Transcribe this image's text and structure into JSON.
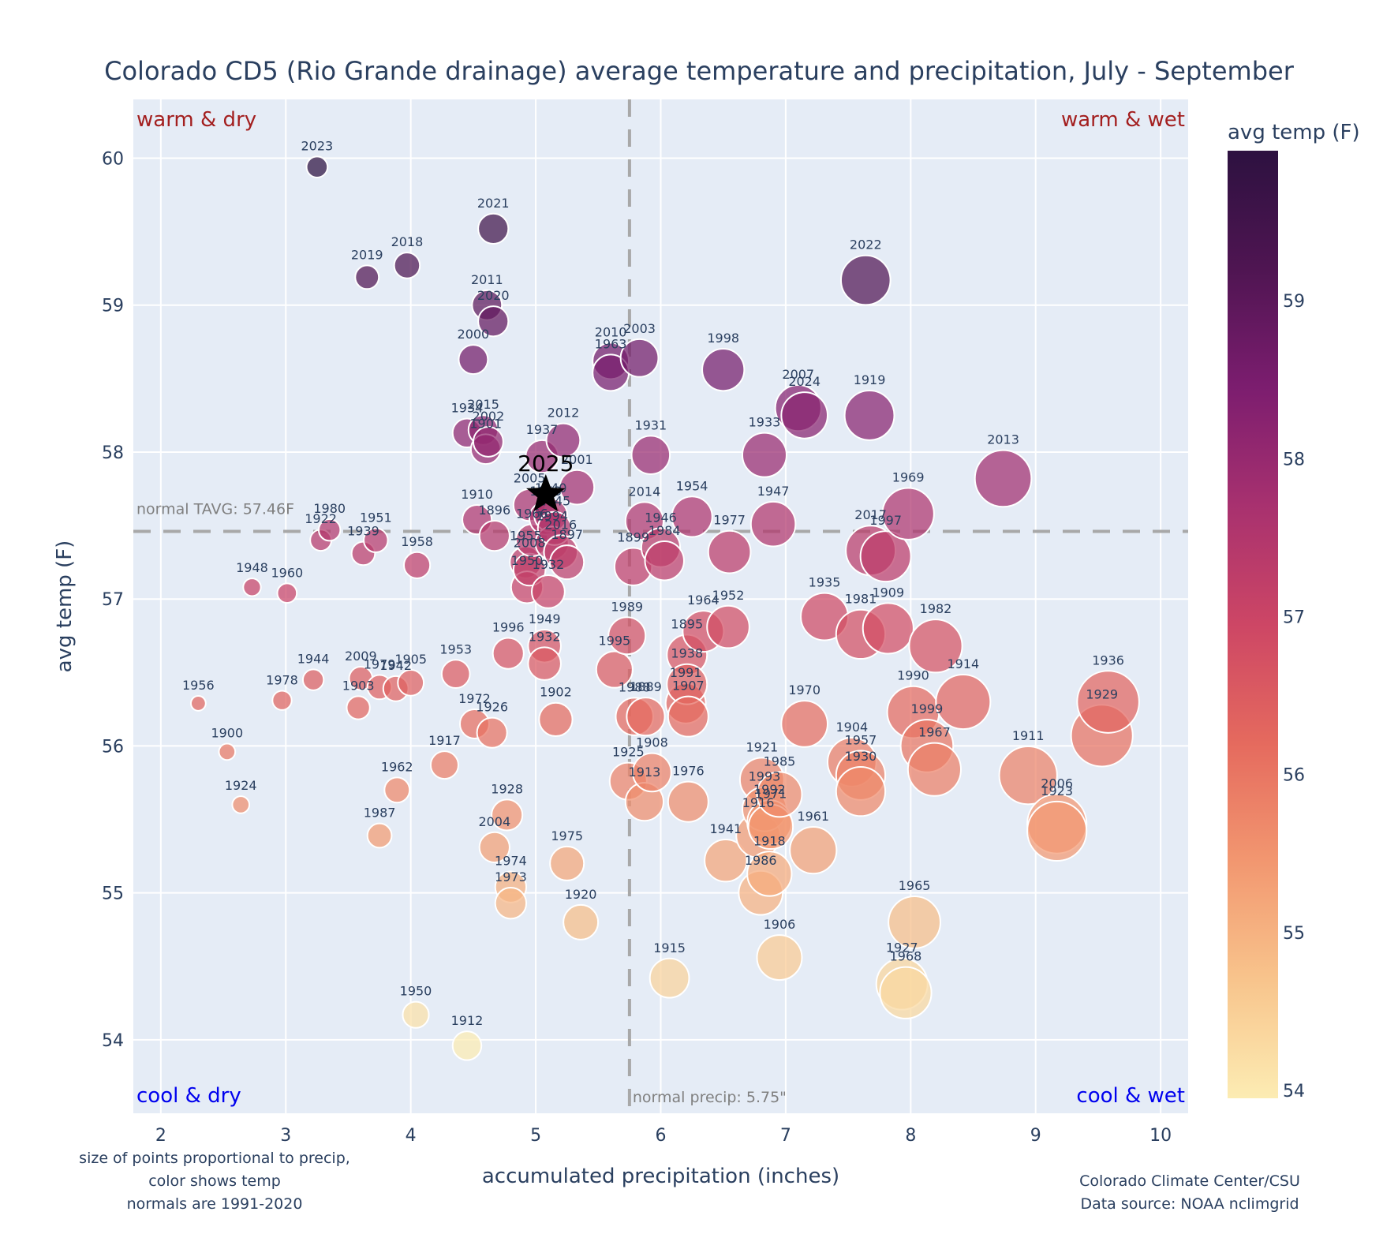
{
  "chart_data": {
    "type": "scatter",
    "title": "Colorado CD5 (Rio Grande drainage) average temperature and precipitation, July - September",
    "xlabel": "accumulated precipitation (inches)",
    "ylabel": "avg temp (F)",
    "xlim": [
      1.78,
      10.22
    ],
    "ylim": [
      53.5,
      60.4
    ],
    "xticks": [
      2,
      3,
      4,
      5,
      6,
      7,
      8,
      9,
      10
    ],
    "yticks": [
      54,
      55,
      56,
      57,
      58,
      59,
      60
    ],
    "grid": true,
    "size_encodes": "precip",
    "color_encodes": "avg temp (F)",
    "colorbar": {
      "title": "avg temp (F)",
      "range": [
        53.95,
        59.95
      ],
      "ticks": [
        54,
        55,
        56,
        57,
        58,
        59
      ],
      "colorscale": [
        "#fcecb3",
        "#f8c48c",
        "#f29770",
        "#e56a5e",
        "#cd4665",
        "#a8316f",
        "#7c1d6f",
        "#4f1552",
        "#2d1140"
      ]
    },
    "normals": {
      "temp": 57.46,
      "precip": 5.75,
      "temp_label": "normal TAVG: 57.46F",
      "precip_label": "normal precip: 5.75\""
    },
    "quadrant_labels": {
      "top_left": "warm & dry",
      "top_right": "warm & wet",
      "bottom_left": "cool & dry",
      "bottom_right": "cool & wet"
    },
    "highlight": {
      "year": "2025",
      "precip": 5.08,
      "temp": 57.71,
      "marker": "star"
    },
    "points": [
      {
        "year": "2023",
        "precip": 3.25,
        "temp": 59.94
      },
      {
        "year": "2021",
        "precip": 4.66,
        "temp": 59.52
      },
      {
        "year": "2019",
        "precip": 3.65,
        "temp": 59.19
      },
      {
        "year": "2018",
        "precip": 3.97,
        "temp": 59.27
      },
      {
        "year": "2011",
        "precip": 4.61,
        "temp": 59.0
      },
      {
        "year": "2020",
        "precip": 4.66,
        "temp": 58.89
      },
      {
        "year": "2000",
        "precip": 4.5,
        "temp": 58.63
      },
      {
        "year": "2010",
        "precip": 5.6,
        "temp": 58.62
      },
      {
        "year": "1963",
        "precip": 5.6,
        "temp": 58.54
      },
      {
        "year": "2003",
        "precip": 5.83,
        "temp": 58.64
      },
      {
        "year": "1998",
        "precip": 6.5,
        "temp": 58.56
      },
      {
        "year": "2007",
        "precip": 7.1,
        "temp": 58.3
      },
      {
        "year": "2024",
        "precip": 7.15,
        "temp": 58.25
      },
      {
        "year": "1919",
        "precip": 7.67,
        "temp": 58.25
      },
      {
        "year": "2022",
        "precip": 7.64,
        "temp": 59.17
      },
      {
        "year": "1934",
        "precip": 4.45,
        "temp": 58.13
      },
      {
        "year": "2015",
        "precip": 4.58,
        "temp": 58.15
      },
      {
        "year": "2002",
        "precip": 4.62,
        "temp": 58.07
      },
      {
        "year": "1901",
        "precip": 4.6,
        "temp": 58.02
      },
      {
        "year": "2012",
        "precip": 5.22,
        "temp": 58.08
      },
      {
        "year": "1937",
        "precip": 5.05,
        "temp": 57.97
      },
      {
        "year": "1931",
        "precip": 5.92,
        "temp": 57.98
      },
      {
        "year": "1933",
        "precip": 6.83,
        "temp": 57.98
      },
      {
        "year": "2013",
        "precip": 8.74,
        "temp": 57.82
      },
      {
        "year": "2001",
        "precip": 5.33,
        "temp": 57.76
      },
      {
        "year": "2005",
        "precip": 4.95,
        "temp": 57.64
      },
      {
        "year": "1910",
        "precip": 4.53,
        "temp": 57.54
      },
      {
        "year": "1896",
        "precip": 4.67,
        "temp": 57.43
      },
      {
        "year": "1940",
        "precip": 5.12,
        "temp": 57.57
      },
      {
        "year": "1943",
        "precip": 5.08,
        "temp": 57.55
      },
      {
        "year": "1945",
        "precip": 5.15,
        "temp": 57.48
      },
      {
        "year": "1966",
        "precip": 4.97,
        "temp": 57.4
      },
      {
        "year": "1994",
        "precip": 5.13,
        "temp": 57.38
      },
      {
        "year": "2016",
        "precip": 5.2,
        "temp": 57.32
      },
      {
        "year": "1955",
        "precip": 4.92,
        "temp": 57.25
      },
      {
        "year": "2008",
        "precip": 4.95,
        "temp": 57.2
      },
      {
        "year": "1897",
        "precip": 5.25,
        "temp": 57.25
      },
      {
        "year": "1932",
        "precip": 5.1,
        "temp": 57.05
      },
      {
        "year": "1950b",
        "precip": 4.93,
        "temp": 57.08
      },
      {
        "year": "2014",
        "precip": 5.87,
        "temp": 57.53
      },
      {
        "year": "1954",
        "precip": 6.25,
        "temp": 57.56
      },
      {
        "year": "1946",
        "precip": 6.0,
        "temp": 57.35
      },
      {
        "year": "1984",
        "precip": 6.03,
        "temp": 57.26
      },
      {
        "year": "1899",
        "precip": 5.78,
        "temp": 57.22
      },
      {
        "year": "1977",
        "precip": 6.55,
        "temp": 57.32
      },
      {
        "year": "1947",
        "precip": 6.9,
        "temp": 57.51
      },
      {
        "year": "2017",
        "precip": 7.68,
        "temp": 57.33
      },
      {
        "year": "1997",
        "precip": 7.8,
        "temp": 57.29
      },
      {
        "year": "1969",
        "precip": 7.98,
        "temp": 57.58
      },
      {
        "year": "1980",
        "precip": 3.35,
        "temp": 57.47
      },
      {
        "year": "1922",
        "precip": 3.28,
        "temp": 57.4
      },
      {
        "year": "1939",
        "precip": 3.62,
        "temp": 57.31
      },
      {
        "year": "1951",
        "precip": 3.72,
        "temp": 57.4
      },
      {
        "year": "1958",
        "precip": 4.05,
        "temp": 57.23
      },
      {
        "year": "1948",
        "precip": 2.73,
        "temp": 57.08
      },
      {
        "year": "1960",
        "precip": 3.01,
        "temp": 57.04
      },
      {
        "year": "1989",
        "precip": 5.73,
        "temp": 56.75
      },
      {
        "year": "1995",
        "precip": 5.63,
        "temp": 56.52
      },
      {
        "year": "1964",
        "precip": 6.34,
        "temp": 56.78
      },
      {
        "year": "1952",
        "precip": 6.54,
        "temp": 56.81
      },
      {
        "year": "1895",
        "precip": 6.21,
        "temp": 56.62
      },
      {
        "year": "1938",
        "precip": 6.21,
        "temp": 56.42
      },
      {
        "year": "1991",
        "precip": 6.2,
        "temp": 56.29
      },
      {
        "year": "1907",
        "precip": 6.22,
        "temp": 56.2
      },
      {
        "year": "1935",
        "precip": 7.31,
        "temp": 56.88
      },
      {
        "year": "1981",
        "precip": 7.6,
        "temp": 56.76
      },
      {
        "year": "1909",
        "precip": 7.82,
        "temp": 56.8
      },
      {
        "year": "1982",
        "precip": 8.2,
        "temp": 56.68
      },
      {
        "year": "1996",
        "precip": 4.78,
        "temp": 56.63
      },
      {
        "year": "1949",
        "precip": 5.07,
        "temp": 56.68
      },
      {
        "year": "1932b",
        "precip": 5.07,
        "temp": 56.56
      },
      {
        "year": "1953",
        "precip": 4.36,
        "temp": 56.49
      },
      {
        "year": "1988",
        "precip": 5.79,
        "temp": 56.2
      },
      {
        "year": "1889",
        "precip": 5.88,
        "temp": 56.2
      },
      {
        "year": "1902",
        "precip": 5.16,
        "temp": 56.18
      },
      {
        "year": "1944",
        "precip": 3.22,
        "temp": 56.45
      },
      {
        "year": "2009",
        "precip": 3.6,
        "temp": 56.46
      },
      {
        "year": "1979",
        "precip": 3.75,
        "temp": 56.4
      },
      {
        "year": "1942",
        "precip": 3.88,
        "temp": 56.39
      },
      {
        "year": "1905",
        "precip": 4.0,
        "temp": 56.43
      },
      {
        "year": "1903",
        "precip": 3.58,
        "temp": 56.26
      },
      {
        "year": "1956",
        "precip": 2.3,
        "temp": 56.29
      },
      {
        "year": "1978",
        "precip": 2.97,
        "temp": 56.31
      },
      {
        "year": "1972",
        "precip": 4.51,
        "temp": 56.15
      },
      {
        "year": "1926",
        "precip": 4.65,
        "temp": 56.09
      },
      {
        "year": "1917",
        "precip": 4.27,
        "temp": 55.87
      },
      {
        "year": "1900",
        "precip": 2.53,
        "temp": 55.96
      },
      {
        "year": "1924",
        "precip": 2.64,
        "temp": 55.6
      },
      {
        "year": "1962",
        "precip": 3.89,
        "temp": 55.7
      },
      {
        "year": "1987",
        "precip": 3.75,
        "temp": 55.39
      },
      {
        "year": "1970",
        "precip": 7.15,
        "temp": 56.15
      },
      {
        "year": "1990",
        "precip": 8.02,
        "temp": 56.23
      },
      {
        "year": "1914",
        "precip": 8.42,
        "temp": 56.3
      },
      {
        "year": "1999",
        "precip": 8.13,
        "temp": 56.0
      },
      {
        "year": "1967",
        "precip": 8.19,
        "temp": 55.84
      },
      {
        "year": "1936",
        "precip": 9.58,
        "temp": 56.3
      },
      {
        "year": "1929",
        "precip": 9.53,
        "temp": 56.07
      },
      {
        "year": "1911",
        "precip": 8.94,
        "temp": 55.8
      },
      {
        "year": "1908",
        "precip": 5.93,
        "temp": 55.82
      },
      {
        "year": "1925",
        "precip": 5.74,
        "temp": 55.76
      },
      {
        "year": "1913",
        "precip": 5.87,
        "temp": 55.62
      },
      {
        "year": "1976",
        "precip": 6.22,
        "temp": 55.62
      },
      {
        "year": "1921",
        "precip": 6.81,
        "temp": 55.77
      },
      {
        "year": "1985",
        "precip": 6.95,
        "temp": 55.67
      },
      {
        "year": "1993",
        "precip": 6.83,
        "temp": 55.57
      },
      {
        "year": "1992",
        "precip": 6.87,
        "temp": 55.48
      },
      {
        "year": "1916",
        "precip": 6.78,
        "temp": 55.39
      },
      {
        "year": "1941",
        "precip": 6.52,
        "temp": 55.22
      },
      {
        "year": "1971",
        "precip": 6.88,
        "temp": 55.45
      },
      {
        "year": "1918",
        "precip": 6.87,
        "temp": 55.13
      },
      {
        "year": "1986",
        "precip": 6.8,
        "temp": 55.0
      },
      {
        "year": "1961",
        "precip": 7.22,
        "temp": 55.29
      },
      {
        "year": "1904",
        "precip": 7.53,
        "temp": 55.89
      },
      {
        "year": "1957",
        "precip": 7.6,
        "temp": 55.8
      },
      {
        "year": "1930",
        "precip": 7.6,
        "temp": 55.69
      },
      {
        "year": "2006",
        "precip": 9.17,
        "temp": 55.47
      },
      {
        "year": "1923",
        "precip": 9.17,
        "temp": 55.42
      },
      {
        "year": "1928",
        "precip": 4.77,
        "temp": 55.53
      },
      {
        "year": "2004",
        "precip": 4.67,
        "temp": 55.31
      },
      {
        "year": "1974",
        "precip": 4.8,
        "temp": 55.04
      },
      {
        "year": "1973",
        "precip": 4.8,
        "temp": 54.93
      },
      {
        "year": "1975",
        "precip": 5.25,
        "temp": 55.2
      },
      {
        "year": "1920",
        "precip": 5.36,
        "temp": 54.8
      },
      {
        "year": "1965",
        "precip": 8.03,
        "temp": 54.8
      },
      {
        "year": "1906",
        "precip": 6.95,
        "temp": 54.56
      },
      {
        "year": "1915",
        "precip": 6.07,
        "temp": 54.42
      },
      {
        "year": "1927",
        "precip": 7.93,
        "temp": 54.38
      },
      {
        "year": "1968",
        "precip": 7.96,
        "temp": 54.32
      },
      {
        "year": "1950",
        "precip": 4.04,
        "temp": 54.17
      },
      {
        "year": "1912",
        "precip": 4.45,
        "temp": 53.96
      }
    ],
    "footnotes": {
      "left": [
        "size of points proportional to precip,",
        "color shows temp",
        "normals are 1991-2020"
      ],
      "right": [
        "Colorado Climate Center/CSU",
        "Data source: NOAA nclimgrid"
      ]
    }
  }
}
